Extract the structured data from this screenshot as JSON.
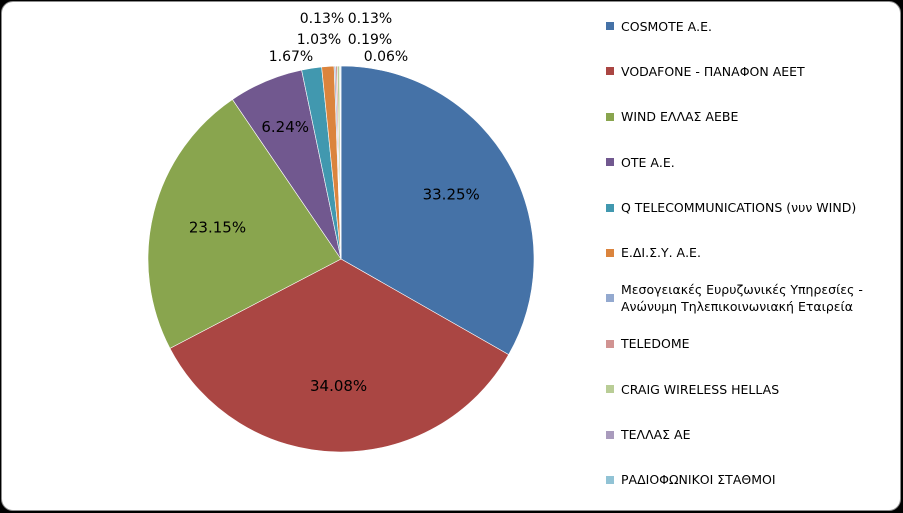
{
  "chart_data": {
    "type": "pie",
    "title": "",
    "slices": [
      {
        "label": "COSMOTE Α.Ε.",
        "value": 33.25,
        "display": "33.25%",
        "color": "#4572a7"
      },
      {
        "label": "VODAFONE - ΠΑΝΑΦΟΝ ΑΕΕΤ",
        "value": 34.08,
        "display": "34.08%",
        "color": "#aa4643"
      },
      {
        "label": "WIND ΕΛΛΑΣ ΑΕΒΕ",
        "value": 23.15,
        "display": "23.15%",
        "color": "#89a54e"
      },
      {
        "label": "ΟΤΕ Α.Ε.",
        "value": 6.24,
        "display": "6.24%",
        "color": "#71588f"
      },
      {
        "label": "Q TELECOMMUNICATIONS (νυν WIND)",
        "value": 1.67,
        "display": "1.67%",
        "color": "#4198af"
      },
      {
        "label": "Ε.ΔΙ.Σ.Υ. Α.Ε.",
        "value": 1.03,
        "display": "1.03%",
        "color": "#db843d"
      },
      {
        "label": "Μεσογειακές Ευρυζωνικές Υπηρεσίες - Ανώνυμη Τηλεπικοινωνιακή Εταιρεία",
        "value": 0.13,
        "display": "0.13%",
        "color": "#93a9cf"
      },
      {
        "label": "TELEDOME",
        "value": 0.13,
        "display": "0.13%",
        "color": "#d19392"
      },
      {
        "label": "CRAIG WIRELESS HELLAS",
        "value": 0.19,
        "display": "0.19%",
        "color": "#b9cd96"
      },
      {
        "label": "ΤΕΛΛΑΣ ΑΕ",
        "value": 0.06,
        "display": "0.06%",
        "color": "#a99bbd"
      },
      {
        "label": "ΡΑΔΙΟΦΩΝΙΚΟΙ ΣΤΑΘΜΟΙ",
        "value": 0.06,
        "display": "",
        "color": "#91c3d5"
      }
    ],
    "legend_position": "right"
  },
  "legend": {
    "items": [
      {
        "label": "COSMOTE Α.Ε.",
        "color": "#4572a7"
      },
      {
        "label": "VODAFONE - ΠΑΝΑΦΟΝ ΑΕΕΤ",
        "color": "#aa4643"
      },
      {
        "label": "WIND ΕΛΛΑΣ ΑΕΒΕ",
        "color": "#89a54e"
      },
      {
        "label": "ΟΤΕ Α.Ε.",
        "color": "#71588f"
      },
      {
        "label": "Q TELECOMMUNICATIONS (νυν WIND)",
        "color": "#4198af"
      },
      {
        "label": "Ε.ΔΙ.Σ.Υ. Α.Ε.",
        "color": "#db843d"
      },
      {
        "label": "Μεσογειακές Ευρυζωνικές Υπηρεσίες - Ανώνυμη Τηλεπικοινωνιακή Εταιρεία",
        "color": "#93a9cf"
      },
      {
        "label": "TELEDOME",
        "color": "#d19392"
      },
      {
        "label": "CRAIG WIRELESS HELLAS",
        "color": "#b9cd96"
      },
      {
        "label": "ΤΕΛΛΑΣ ΑΕ",
        "color": "#a99bbd"
      },
      {
        "label": "ΡΑΔΙΟΦΩΝΙΚΟΙ ΣΤΑΘΜΟΙ",
        "color": "#91c3d5"
      }
    ]
  }
}
